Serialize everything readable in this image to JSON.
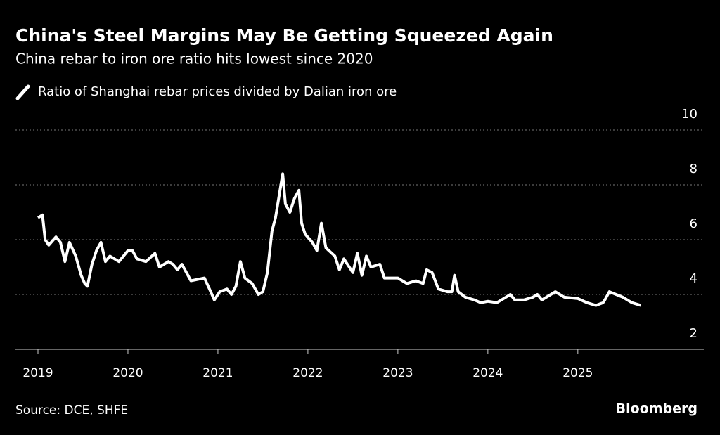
{
  "chart_data": {
    "type": "line",
    "title": "China's Steel Margins May Be Getting Squeezed Again",
    "subtitle": "China rebar to iron ore ratio hits lowest since 2020",
    "source": "Source: DCE, SHFE",
    "brand": "Bloomberg",
    "xlim": [
      2018.75,
      2026.4
    ],
    "xticks": [
      2019,
      2020,
      2021,
      2022,
      2023,
      2024,
      2025
    ],
    "ylim": [
      2,
      10
    ],
    "yticks": [
      2,
      4,
      6,
      8,
      10
    ],
    "grid": true,
    "x": [
      2019.0,
      2019.05,
      2019.08,
      2019.12,
      2019.2,
      2019.25,
      2019.3,
      2019.35,
      2019.42,
      2019.48,
      2019.52,
      2019.55,
      2019.6,
      2019.65,
      2019.7,
      2019.75,
      2019.8,
      2019.9,
      2020.0,
      2020.05,
      2020.1,
      2020.2,
      2020.3,
      2020.35,
      2020.45,
      2020.5,
      2020.55,
      2020.6,
      2020.7,
      2020.85,
      2020.92,
      2020.96,
      2021.02,
      2021.1,
      2021.15,
      2021.2,
      2021.25,
      2021.3,
      2021.38,
      2021.45,
      2021.5,
      2021.55,
      2021.6,
      2021.64,
      2021.7,
      2021.72,
      2021.75,
      2021.8,
      2021.85,
      2021.9,
      2021.93,
      2021.97,
      2022.05,
      2022.1,
      2022.15,
      2022.2,
      2022.3,
      2022.35,
      2022.4,
      2022.5,
      2022.55,
      2022.6,
      2022.65,
      2022.7,
      2022.8,
      2022.85,
      2022.95,
      2023.0,
      2023.1,
      2023.2,
      2023.28,
      2023.32,
      2023.38,
      2023.45,
      2023.55,
      2023.6,
      2023.63,
      2023.67,
      2023.75,
      2023.85,
      2023.92,
      2024.0,
      2024.1,
      2024.2,
      2024.25,
      2024.3,
      2024.4,
      2024.5,
      2024.55,
      2024.6,
      2024.7,
      2024.75,
      2024.85,
      2025.0,
      2025.1,
      2025.2,
      2025.28,
      2025.3,
      2025.35,
      2025.5,
      2025.6,
      2025.7
    ],
    "series": [
      {
        "name": "Ratio of Shanghai rebar prices divided by Dalian iron ore",
        "color": "#ffffff",
        "values": [
          6.8,
          6.9,
          6.0,
          5.8,
          6.1,
          5.9,
          5.2,
          5.9,
          5.4,
          4.7,
          4.4,
          4.3,
          5.1,
          5.6,
          5.9,
          5.2,
          5.4,
          5.2,
          5.6,
          5.6,
          5.3,
          5.2,
          5.5,
          5.0,
          5.2,
          5.1,
          4.9,
          5.1,
          4.5,
          4.6,
          4.1,
          3.8,
          4.1,
          4.2,
          4.0,
          4.3,
          5.2,
          4.6,
          4.4,
          4.0,
          4.1,
          4.8,
          6.3,
          6.8,
          8.0,
          8.4,
          7.3,
          7.0,
          7.5,
          7.8,
          6.6,
          6.2,
          5.9,
          5.6,
          6.6,
          5.7,
          5.4,
          4.9,
          5.3,
          4.8,
          5.5,
          4.7,
          5.4,
          5.0,
          5.1,
          4.6,
          4.6,
          4.6,
          4.4,
          4.5,
          4.4,
          4.9,
          4.8,
          4.2,
          4.1,
          4.1,
          4.7,
          4.1,
          3.9,
          3.8,
          3.7,
          3.75,
          3.7,
          3.9,
          4.0,
          3.8,
          3.8,
          3.9,
          4.0,
          3.8,
          4.0,
          4.1,
          3.9,
          3.85,
          3.7,
          3.6,
          3.7,
          3.8,
          4.1,
          3.9,
          3.7,
          3.6
        ]
      }
    ]
  }
}
